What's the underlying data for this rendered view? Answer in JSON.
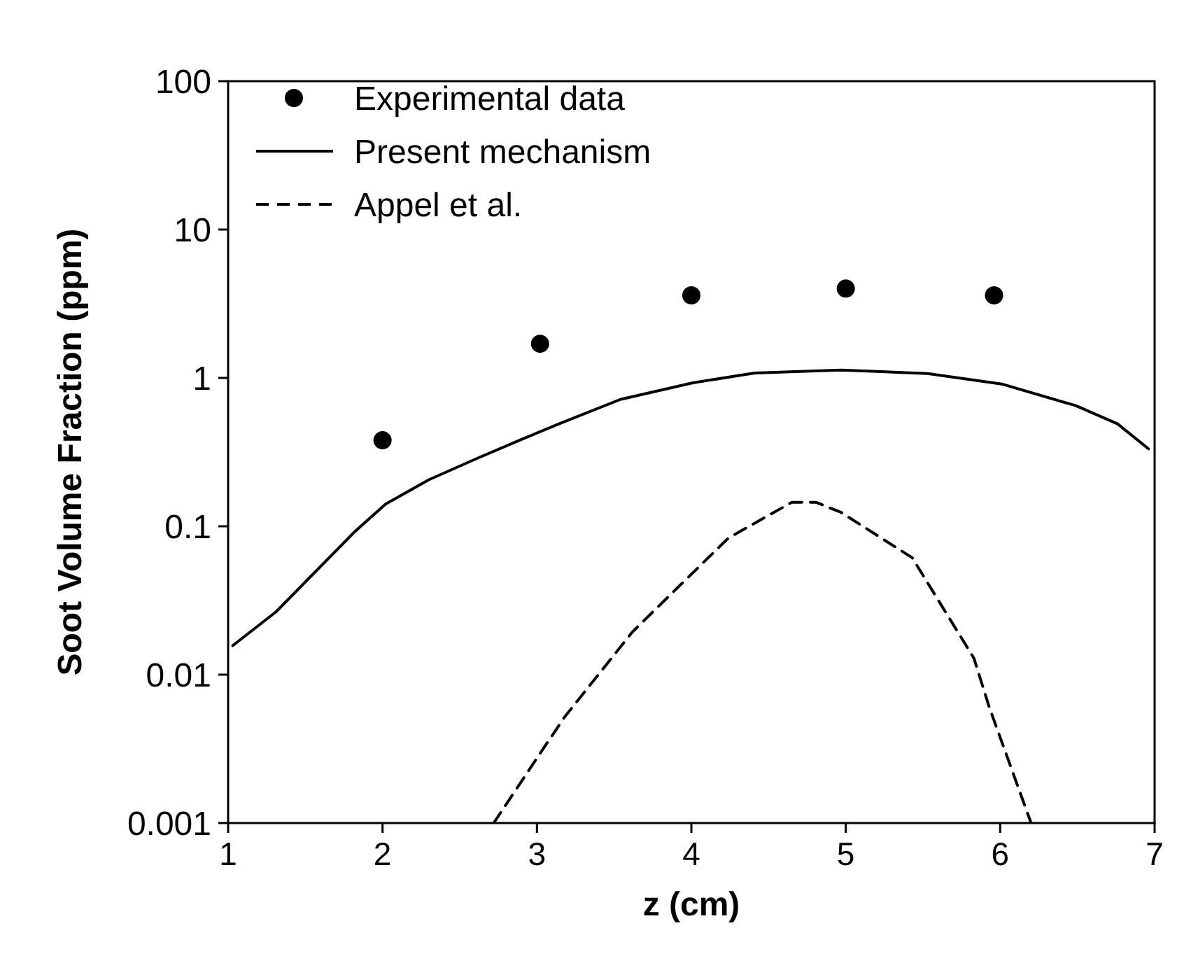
{
  "chart_data": {
    "type": "line",
    "xlabel": "z (cm)",
    "ylabel": "Soot Volume Fraction (ppm)",
    "log": "y",
    "xlim": [
      1,
      7
    ],
    "xticks": [
      1,
      2,
      3,
      4,
      5,
      6,
      7
    ],
    "ylim": [
      0.001,
      100
    ],
    "yticks": [
      0.001,
      0.01,
      0.1,
      1,
      10,
      100
    ],
    "grid": false,
    "legend": "top left",
    "series": [
      {
        "name": "Experimental data",
        "type": "scatter",
        "marker": "circle",
        "color": "#000000",
        "x": [
          2,
          3.02,
          4,
          5,
          5.96
        ],
        "values": [
          0.38,
          1.7,
          3.6,
          4.0,
          3.6
        ]
      },
      {
        "name": "Present mechanism",
        "line_style": "solid",
        "color": "#000000",
        "x": [
          1.03,
          1.31,
          1.82,
          2.02,
          2.3,
          2.62,
          2.9,
          3.14,
          3.54,
          4.01,
          4.41,
          4.97,
          5.53,
          6.01,
          6.49,
          6.76,
          6.96
        ],
        "values": [
          0.0157,
          0.0265,
          0.092,
          0.141,
          0.206,
          0.289,
          0.385,
          0.489,
          0.716,
          0.927,
          1.08,
          1.13,
          1.07,
          0.91,
          0.65,
          0.49,
          0.333
        ]
      },
      {
        "name": "Appel et al.",
        "line_style": "dashed",
        "color": "#000000",
        "x": [
          2.72,
          2.98,
          3.18,
          3.62,
          4.24,
          4.65,
          4.81,
          4.97,
          5.43,
          5.83,
          5.93,
          6.2
        ],
        "values": [
          0.001,
          0.00255,
          0.0052,
          0.0195,
          0.0834,
          0.145,
          0.145,
          0.124,
          0.0614,
          0.0129,
          0.006,
          0.001
        ]
      }
    ]
  }
}
